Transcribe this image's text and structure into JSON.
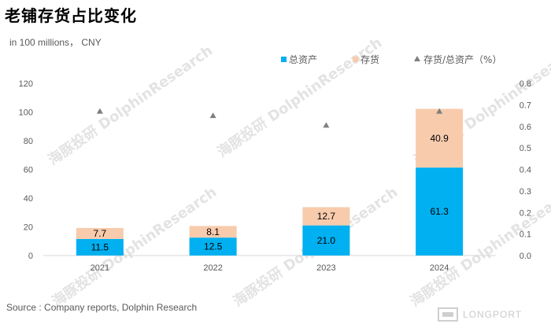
{
  "title": "老铺存货占比变化",
  "unit_label": "in 100 millions， CNY",
  "source": "Source : Company reports, Dolphin Research",
  "watermark": {
    "cn": "海豚投研",
    "en": "DolphinResearch"
  },
  "brand": "LONGPORT",
  "colors": {
    "total_assets": "#00b0f0",
    "inventory": "#f8cbad",
    "ratio": "#7f7f7f",
    "axis": "#d9d9d9",
    "text": "#595959"
  },
  "chart_data": {
    "type": "bar",
    "stacked": true,
    "categories": [
      "2021",
      "2022",
      "2023",
      "2024"
    ],
    "series": [
      {
        "name": "总资产",
        "values": [
          11.5,
          12.5,
          21.0,
          61.3
        ],
        "labels": [
          "11.5",
          "12.5",
          "21.0",
          "61.3"
        ]
      },
      {
        "name": "存货",
        "values": [
          7.7,
          8.1,
          12.7,
          40.9
        ],
        "labels": [
          "7.7",
          "8.1",
          "12.7",
          "40.9"
        ]
      }
    ],
    "ratio_series": {
      "name": "存货/总资产（%）",
      "axis": "right",
      "values": [
        0.67,
        0.65,
        0.605,
        0.67
      ]
    },
    "legend_labels": [
      "总资产",
      "存货",
      "存货/总资产（%）"
    ],
    "legend_position": "top-right",
    "ylim_left": [
      0,
      120
    ],
    "ylim_right": [
      0,
      0.8
    ],
    "yticks_left": [
      "0",
      "20",
      "40",
      "60",
      "80",
      "100",
      "120"
    ],
    "yticks_right": [
      "0.0",
      "0.1",
      "0.2",
      "0.3",
      "0.4",
      "0.5",
      "0.6",
      "0.7",
      "0.8"
    ],
    "grid": false
  }
}
